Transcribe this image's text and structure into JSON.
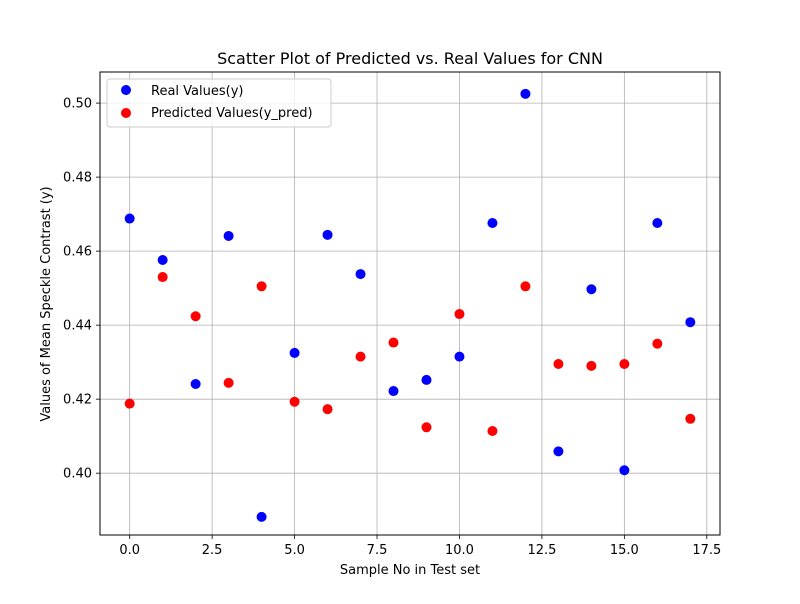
{
  "chart_data": {
    "type": "scatter",
    "title": "Scatter Plot of Predicted vs. Real Values for CNN",
    "xlabel": "Sample No in Test set",
    "ylabel": "Values of Mean Speckle Contrast (y)",
    "xlim": [
      -0.9,
      17.9
    ],
    "ylim": [
      0.3833,
      0.5084
    ],
    "xticks": [
      0.0,
      2.5,
      5.0,
      7.5,
      10.0,
      12.5,
      15.0,
      17.5
    ],
    "xtick_labels": [
      "0.0",
      "2.5",
      "5.0",
      "7.5",
      "10.0",
      "12.5",
      "15.0",
      "17.5"
    ],
    "yticks": [
      0.4,
      0.42,
      0.44,
      0.46,
      0.48,
      0.5
    ],
    "ytick_labels": [
      "0.40",
      "0.42",
      "0.44",
      "0.46",
      "0.48",
      "0.50"
    ],
    "grid": true,
    "legend_position": "top-left",
    "series": [
      {
        "name": "Real Values(y)",
        "color": "#0000ff",
        "x": [
          0,
          1,
          2,
          3,
          4,
          5,
          6,
          7,
          8,
          9,
          10,
          11,
          12,
          13,
          14,
          15,
          16,
          17
        ],
        "y": [
          0.4688,
          0.4576,
          0.4241,
          0.4641,
          0.3882,
          0.4325,
          0.4644,
          0.4538,
          0.4222,
          0.4252,
          0.4315,
          0.4676,
          0.5025,
          0.4059,
          0.4497,
          0.4008,
          0.4676,
          0.4408
        ]
      },
      {
        "name": "Predicted Values(y_pred)",
        "color": "#ff0000",
        "x": [
          0,
          1,
          2,
          3,
          4,
          5,
          6,
          7,
          8,
          9,
          10,
          11,
          12,
          13,
          14,
          15,
          16,
          17
        ],
        "y": [
          0.4188,
          0.453,
          0.4424,
          0.4244,
          0.4505,
          0.4193,
          0.4173,
          0.4315,
          0.4353,
          0.4124,
          0.443,
          0.4114,
          0.4505,
          0.4295,
          0.429,
          0.4295,
          0.435,
          0.4147
        ]
      }
    ]
  }
}
